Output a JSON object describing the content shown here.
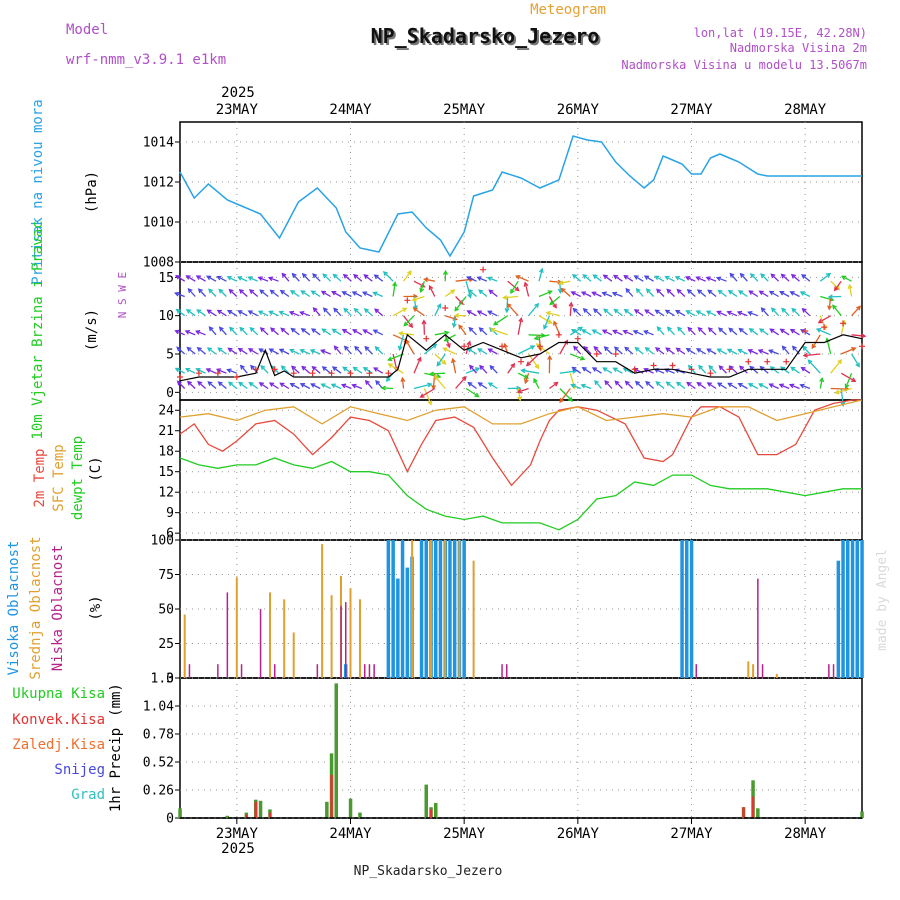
{
  "header": {
    "model_label": "Model",
    "model_name": "wrf-nmm_v3.9.1  e1km",
    "chart_type_label": "Meteogram",
    "station": "NP_Skadarsko_Jezero",
    "coords": "lon,lat (19.15E, 42.28N)",
    "elevation": "Nadmorska Visina 2m",
    "model_elevation": "Nadmorska Visina u modelu 13.5067m",
    "footer_station": "NP_Skadarsko_Jezero",
    "watermark": "made by Angel"
  },
  "colors": {
    "pressure": "#29a3e6",
    "temp_2m": "#e84a3d",
    "temp_sfc": "#e0a030",
    "dewpoint": "#22cc22",
    "cloud_high": "#1f95e0",
    "cloud_mid": "#e0a030",
    "cloud_low": "#b8218a",
    "precip_total": "#4a9a30",
    "precip_conv": "#e63232",
    "wind_speed": "#000000",
    "wind_gust": "#e63232",
    "title_purple": "#b050c8",
    "meteogram_orange": "#e8a030"
  },
  "chart_data": [
    {
      "type": "line",
      "ylabel": "Pritisak na nivou mora",
      "unit": "(hPa)",
      "x_dates": [
        "23MAY",
        "24MAY",
        "25MAY",
        "26MAY",
        "27MAY",
        "28MAY"
      ],
      "year": "2025",
      "x_range_hours": [
        0,
        144
      ],
      "ylim": [
        1008,
        1015
      ],
      "yticks": [
        "1008",
        "1010",
        "1012",
        "1014"
      ],
      "series": [
        {
          "x": [
            0,
            3,
            6,
            10,
            13,
            17,
            21,
            25,
            29,
            33,
            35,
            38,
            42,
            46,
            49,
            52,
            55,
            57,
            60,
            62,
            66,
            68,
            72,
            76,
            80,
            83,
            86,
            89,
            92,
            95,
            98,
            100,
            102,
            104,
            106,
            108,
            110,
            112,
            114,
            116,
            118,
            120,
            122,
            124,
            126,
            128,
            130,
            132,
            134,
            136,
            138,
            140,
            142,
            144
          ],
          "values": [
            1012.5,
            1011.2,
            1011.9,
            1011.1,
            1010.8,
            1010.4,
            1009.2,
            1011.0,
            1011.7,
            1010.7,
            1009.5,
            1008.7,
            1008.5,
            1010.4,
            1010.5,
            1009.7,
            1009.1,
            1008.3,
            1009.5,
            1011.3,
            1011.6,
            1012.5,
            1012.2,
            1011.7,
            1012.1,
            1014.3,
            1014.1,
            1014.0,
            1013.0,
            1012.3,
            1011.7,
            1012.1,
            1013.3,
            1013.1,
            1012.9,
            1012.4,
            1012.4,
            1013.2,
            1013.4,
            1013.2,
            1013.0,
            1012.7,
            1012.4,
            1012.3,
            1012.3,
            1012.3,
            1012.3,
            1012.3,
            1012.3,
            1012.3,
            1012.3,
            1012.3,
            1012.3,
            1012.3
          ]
        }
      ]
    },
    {
      "type": "line",
      "ylabel": "10m Vjetar Brzina i Pravac",
      "unit": "(m/s)",
      "compass": "N S W E",
      "ylim": [
        -1,
        17
      ],
      "yticks": [
        "0",
        "5",
        "10",
        "15"
      ],
      "series": [
        {
          "x": [
            0,
            4,
            8,
            12,
            16,
            18,
            20,
            22,
            24,
            28,
            32,
            36,
            40,
            44,
            46,
            48,
            52,
            56,
            60,
            64,
            68,
            72,
            76,
            80,
            84,
            88,
            92,
            96,
            100,
            104,
            108,
            112,
            116,
            120,
            124,
            128,
            132,
            136,
            140,
            144
          ],
          "values": [
            1.5,
            2.0,
            2.0,
            2.0,
            2.5,
            5.5,
            2.2,
            2.8,
            2.0,
            2.0,
            2.0,
            2.0,
            2.0,
            2.0,
            3.0,
            7.5,
            5.5,
            7.5,
            5.5,
            6.5,
            5.5,
            4.5,
            5.0,
            6.5,
            6.5,
            4.0,
            4.0,
            2.5,
            3.0,
            3.0,
            2.5,
            2.0,
            2.0,
            3.0,
            3.0,
            3.0,
            6.5,
            6.5,
            7.5,
            7.0
          ]
        },
        {
          "x": [
            0,
            4,
            8,
            12,
            16,
            20,
            24,
            28,
            32,
            36,
            40,
            44,
            48,
            52,
            56,
            60,
            64,
            68,
            72,
            76,
            80,
            84,
            88,
            92,
            96,
            100,
            104,
            108,
            112,
            116,
            120,
            124,
            128,
            132,
            136,
            140,
            144
          ],
          "values": [
            2.0,
            2.5,
            2.5,
            2.0,
            3.0,
            3.0,
            2.5,
            2.5,
            2.5,
            2.5,
            2.5,
            2.5,
            12.0,
            7.0,
            11.0,
            6.0,
            16.0,
            6.0,
            4.0,
            6.0,
            7.5,
            7.0,
            5.0,
            5.0,
            3.0,
            3.5,
            3.5,
            3.0,
            2.5,
            3.0,
            4.0,
            4.0,
            4.0,
            8.0,
            8.5,
            9.0,
            6.0
          ]
        }
      ]
    },
    {
      "type": "line",
      "labels": [
        "2m Temp",
        "SFC Temp",
        "dewpt Temp"
      ],
      "unit": "(C)",
      "ylim": [
        5,
        25.5
      ],
      "yticks": [
        "6",
        "9",
        "12",
        "15",
        "18",
        "21",
        "24"
      ],
      "series": [
        {
          "name": "2m Temp",
          "x": [
            0,
            3,
            6,
            9,
            12,
            16,
            20,
            24,
            26,
            28,
            32,
            36,
            40,
            44,
            46,
            48,
            51,
            54,
            58,
            62,
            66,
            70,
            74,
            76,
            78,
            80,
            84,
            88,
            94,
            98,
            102,
            104,
            108,
            110,
            114,
            118,
            122,
            126,
            130,
            134,
            138,
            142,
            144
          ],
          "values": [
            20.5,
            22.0,
            19.0,
            18.0,
            19.5,
            22.0,
            22.5,
            20.5,
            19.0,
            17.5,
            20.0,
            23.0,
            22.5,
            21.0,
            18.0,
            15.0,
            19.0,
            22.5,
            23.0,
            21.5,
            17.0,
            13.0,
            16.0,
            19.5,
            22.5,
            24.0,
            24.5,
            24.0,
            22.0,
            17.0,
            16.5,
            17.5,
            23.0,
            24.5,
            24.5,
            23.0,
            17.5,
            17.5,
            19.0,
            24.0,
            25.0,
            25.5,
            25.5
          ]
        },
        {
          "name": "SFC Temp",
          "x": [
            0,
            6,
            12,
            18,
            24,
            30,
            36,
            42,
            48,
            54,
            60,
            66,
            72,
            78,
            84,
            90,
            96,
            102,
            108,
            114,
            120,
            126,
            132,
            138,
            144
          ],
          "values": [
            23.0,
            23.5,
            22.5,
            24.0,
            24.5,
            22.0,
            24.5,
            23.5,
            22.5,
            24.0,
            24.5,
            22.0,
            22.0,
            23.5,
            24.5,
            22.5,
            23.0,
            23.5,
            23.0,
            24.5,
            24.5,
            22.5,
            23.5,
            24.5,
            25.5
          ]
        },
        {
          "name": "dewpt Temp",
          "x": [
            0,
            4,
            8,
            12,
            16,
            20,
            24,
            28,
            32,
            36,
            40,
            44,
            48,
            52,
            56,
            60,
            64,
            68,
            72,
            76,
            80,
            84,
            88,
            92,
            96,
            100,
            104,
            108,
            112,
            116,
            120,
            124,
            128,
            132,
            136,
            140,
            144
          ],
          "values": [
            17.0,
            16.0,
            15.5,
            16.0,
            16.0,
            17.0,
            16.0,
            15.5,
            16.5,
            15.0,
            15.0,
            14.5,
            11.5,
            9.5,
            8.5,
            8.0,
            8.5,
            7.5,
            7.5,
            7.5,
            6.5,
            8.0,
            11.0,
            11.5,
            13.5,
            13.0,
            14.5,
            14.5,
            13.0,
            12.5,
            12.5,
            12.5,
            12.0,
            11.5,
            12.0,
            12.5,
            12.5
          ]
        }
      ]
    },
    {
      "type": "bar",
      "labels": [
        "Visoka Oblacnost",
        "Srednja Oblacnost",
        "Niska Oblacnost"
      ],
      "unit": "(%)",
      "ylim": [
        0,
        100
      ],
      "yticks": [
        "0",
        "25",
        "50",
        "75",
        "100"
      ],
      "series": [
        {
          "name": "Visoka Oblacnost",
          "x": [
            35,
            44,
            45,
            46,
            47,
            48,
            49,
            51,
            52,
            53,
            54,
            55,
            56,
            57,
            58,
            59,
            60,
            106,
            107,
            108,
            139,
            140,
            141,
            142,
            143,
            144
          ],
          "values": [
            10,
            100,
            100,
            72,
            100,
            80,
            88,
            100,
            100,
            100,
            100,
            100,
            100,
            100,
            100,
            100,
            100,
            100,
            100,
            100,
            85,
            100,
            100,
            100,
            100,
            100
          ]
        },
        {
          "name": "Srednja Oblacnost",
          "x": [
            1,
            12,
            19,
            22,
            24,
            30,
            32,
            34,
            36,
            38,
            49,
            53,
            56,
            59,
            62,
            120,
            121,
            126
          ],
          "values": [
            46,
            73,
            62,
            57,
            33,
            97,
            60,
            74,
            65,
            57,
            100,
            100,
            100,
            100,
            85,
            12,
            10,
            3
          ]
        },
        {
          "name": "Niska Oblacnost",
          "x": [
            2,
            8,
            10,
            13,
            17,
            20,
            29,
            34,
            35,
            39,
            40,
            41,
            68,
            69,
            109,
            122,
            123,
            137,
            138
          ],
          "values": [
            10,
            10,
            62,
            10,
            50,
            10,
            10,
            52,
            55,
            10,
            10,
            10,
            10,
            10,
            10,
            72,
            10,
            10,
            10
          ]
        }
      ]
    },
    {
      "type": "bar",
      "labels": [
        "Ukupna Kisa",
        "Konvek.Kisa",
        "Zaledj.Kisa",
        "Snijeg",
        "Grad"
      ],
      "label_colors": [
        "#22cc22",
        "#e63232",
        "#f07030",
        "#4848e0",
        "#30c0c0"
      ],
      "ylabel": "1hr Precip",
      "unit": "(mm)",
      "ylim": [
        0,
        1.3
      ],
      "yticks": [
        "0",
        "0.26",
        "0.52",
        "0.78",
        "1.04",
        "1.3"
      ],
      "series": [
        {
          "name": "Ukupna Kisa",
          "x": [
            0,
            10,
            14,
            16,
            17,
            19,
            31,
            32,
            33,
            36,
            38,
            52,
            53,
            54,
            119,
            121,
            122,
            144
          ],
          "values": [
            0.09,
            0.02,
            0.05,
            0.17,
            0.16,
            0.08,
            0.15,
            0.6,
            1.25,
            0.18,
            0.05,
            0.31,
            0.1,
            0.14,
            0.1,
            0.35,
            0.09,
            0.06
          ]
        },
        {
          "name": "Konvek.Kisa",
          "x": [
            14,
            16,
            19,
            32,
            53,
            119,
            121
          ],
          "values": [
            0.03,
            0.15,
            0.05,
            0.4,
            0.08,
            0.1,
            0.2
          ]
        }
      ]
    }
  ]
}
